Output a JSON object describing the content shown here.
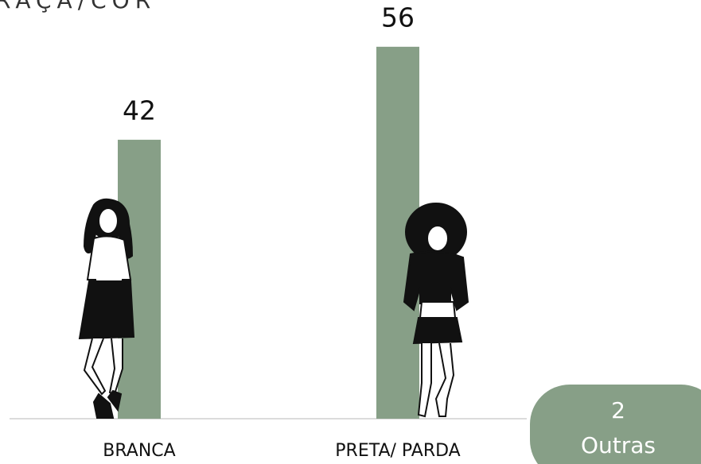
{
  "chart_data": {
    "type": "bar",
    "title": "RAÇA/COR",
    "categories": [
      "BRANCA",
      "PRETA/ PARDA",
      "Outras"
    ],
    "values": [
      42,
      56,
      2
    ],
    "color": "#879f87"
  }
}
